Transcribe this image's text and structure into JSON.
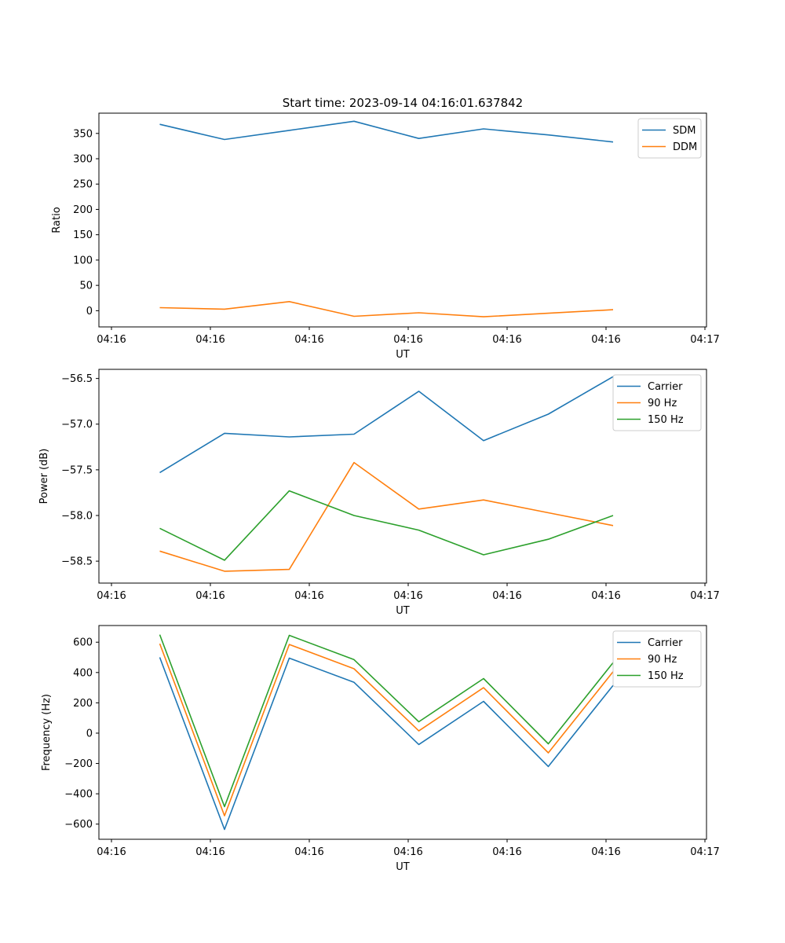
{
  "figure_title": "Start time: 2023-09-14 04:16:01.637842",
  "colors": {
    "blue": "#1f77b4",
    "orange": "#ff7f0e",
    "green": "#2ca02c",
    "legend_edge": "#cccccc"
  },
  "chart_data": [
    {
      "type": "line",
      "xlabel": "UT",
      "ylabel": "Ratio",
      "xticks": [
        "04:16",
        "04:16",
        "04:16",
        "04:16",
        "04:16",
        "04:16",
        "04:17"
      ],
      "ylim": [
        -32,
        390
      ],
      "yticks": [
        0,
        50,
        100,
        150,
        200,
        250,
        300,
        350
      ],
      "ytick_labels": [
        "0",
        "50",
        "100",
        "150",
        "200",
        "250",
        "300",
        "350"
      ],
      "legend": "top-right",
      "series": [
        {
          "name": "SDM",
          "color": "#1f77b4",
          "values": [
            368,
            338,
            356,
            374,
            340,
            359,
            347,
            333
          ]
        },
        {
          "name": "DDM",
          "color": "#ff7f0e",
          "values": [
            6,
            3,
            18,
            -11,
            -4,
            -12,
            -5,
            2
          ]
        }
      ]
    },
    {
      "type": "line",
      "xlabel": "UT",
      "ylabel": "Power (dB)",
      "xticks": [
        "04:16",
        "04:16",
        "04:16",
        "04:16",
        "04:16",
        "04:16",
        "04:17"
      ],
      "ylim": [
        -58.74,
        -56.4
      ],
      "yticks": [
        -58.5,
        -58.0,
        -57.5,
        -57.0,
        -56.5
      ],
      "ytick_labels": [
        "−58.5",
        "−58.0",
        "−57.5",
        "−57.0",
        "−56.5"
      ],
      "legend": "top-right",
      "series": [
        {
          "name": "Carrier",
          "color": "#1f77b4",
          "values": [
            -57.53,
            -57.1,
            -57.14,
            -57.11,
            -56.64,
            -57.18,
            -56.89,
            -56.48
          ]
        },
        {
          "name": "90 Hz",
          "color": "#ff7f0e",
          "values": [
            -58.39,
            -58.61,
            -58.59,
            -57.42,
            -57.93,
            -57.83,
            -57.97,
            -58.11
          ]
        },
        {
          "name": "150 Hz",
          "color": "#2ca02c",
          "values": [
            -58.14,
            -58.49,
            -57.73,
            -58.0,
            -58.16,
            -58.43,
            -58.26,
            -58.0
          ]
        }
      ]
    },
    {
      "type": "line",
      "xlabel": "UT",
      "ylabel": "Frequency (Hz)",
      "xticks": [
        "04:16",
        "04:16",
        "04:16",
        "04:16",
        "04:16",
        "04:16",
        "04:17"
      ],
      "ylim": [
        -700,
        710
      ],
      "yticks": [
        -600,
        -400,
        -200,
        0,
        200,
        400,
        600
      ],
      "ytick_labels": [
        "−600",
        "−400",
        "−200",
        "0",
        "200",
        "400",
        "600"
      ],
      "legend": "top-right",
      "series": [
        {
          "name": "Carrier",
          "color": "#1f77b4",
          "values": [
            500,
            -635,
            495,
            335,
            -75,
            210,
            -220,
            315
          ]
        },
        {
          "name": "90 Hz",
          "color": "#ff7f0e",
          "values": [
            590,
            -545,
            585,
            425,
            15,
            300,
            -130,
            405
          ]
        },
        {
          "name": "150 Hz",
          "color": "#2ca02c",
          "values": [
            650,
            -485,
            645,
            485,
            75,
            360,
            -70,
            465
          ]
        }
      ]
    }
  ]
}
